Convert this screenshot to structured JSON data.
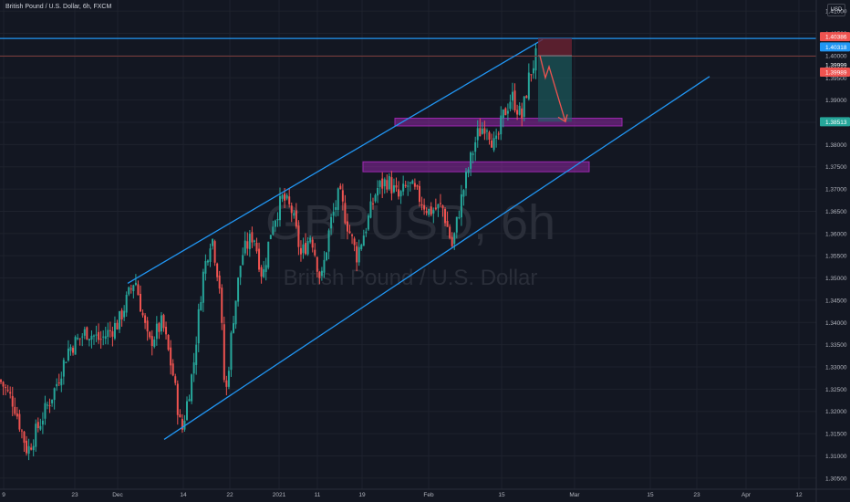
{
  "header": {
    "symbol_title": "British Pound / U.S. Dollar, 6h, FXCM"
  },
  "price_scale": {
    "currency": "USD"
  },
  "watermark": {
    "ticker": "GBPUSD, 6h",
    "name": "British Pound / U.S. Dollar"
  },
  "colors": {
    "background": "#131722",
    "grid": "#1e222d",
    "up_candle": "#26a69a",
    "down_candle": "#ef5350",
    "trend_line": "#2196f3",
    "zone": "#9c27b0",
    "target_zone": "#1e6b6b",
    "stop_zone": "#6b2232"
  },
  "badges": {
    "b1": "1.40386",
    "b2": "1.40318",
    "b3": "1.39999",
    "b4": "1.39989",
    "b5": "1.38513"
  },
  "chart_data": {
    "type": "candlestick",
    "symbol": "GBPUSD",
    "timeframe": "6h",
    "title": "British Pound / U.S. Dollar, 6h, FXCM",
    "x_tick_labels": [
      "9",
      "23",
      "Dec",
      "14",
      "22",
      "2021",
      "11",
      "19",
      "Feb",
      "15",
      "Mar",
      "15",
      "23",
      "Apr",
      "12"
    ],
    "y_ticks": [
      1.305,
      1.31,
      1.315,
      1.32,
      1.325,
      1.33,
      1.335,
      1.34,
      1.345,
      1.35,
      1.355,
      1.36,
      1.365,
      1.37,
      1.375,
      1.38,
      1.385,
      1.39,
      1.395,
      1.4,
      1.405,
      1.41
    ],
    "y_tick_labels": [
      "1.30500",
      "1.31000",
      "1.31500",
      "1.32000",
      "1.32500",
      "1.33000",
      "1.33500",
      "1.34000",
      "1.34500",
      "1.35000",
      "1.35500",
      "1.36000",
      "1.36500",
      "1.37000",
      "1.37500",
      "1.38000",
      "1.38500",
      "1.39000",
      "1.39500",
      "1.40000",
      "1.40500",
      "1.41000"
    ],
    "ylim": [
      1.3025,
      1.4125
    ],
    "price_path": [
      [
        0,
        1.327
      ],
      [
        15,
        1.322
      ],
      [
        30,
        1.311
      ],
      [
        45,
        1.318
      ],
      [
        60,
        1.325
      ],
      [
        75,
        1.334
      ],
      [
        95,
        1.338
      ],
      [
        110,
        1.336
      ],
      [
        130,
        1.34
      ],
      [
        148,
        1.35
      ],
      [
        163,
        1.335
      ],
      [
        178,
        1.34
      ],
      [
        190,
        1.328
      ],
      [
        199,
        1.315
      ],
      [
        212,
        1.33
      ],
      [
        222,
        1.35
      ],
      [
        232,
        1.36
      ],
      [
        241,
        1.348
      ],
      [
        247,
        1.322
      ],
      [
        255,
        1.34
      ],
      [
        265,
        1.355
      ],
      [
        278,
        1.36
      ],
      [
        288,
        1.35
      ],
      [
        298,
        1.362
      ],
      [
        310,
        1.368
      ],
      [
        320,
        1.365
      ],
      [
        330,
        1.355
      ],
      [
        341,
        1.36
      ],
      [
        352,
        1.349
      ],
      [
        362,
        1.362
      ],
      [
        372,
        1.369
      ],
      [
        381,
        1.362
      ],
      [
        391,
        1.355
      ],
      [
        402,
        1.362
      ],
      [
        413,
        1.37
      ],
      [
        425,
        1.372
      ],
      [
        437,
        1.368
      ],
      [
        448,
        1.371
      ],
      [
        460,
        1.368
      ],
      [
        470,
        1.365
      ],
      [
        485,
        1.366
      ],
      [
        496,
        1.357
      ],
      [
        505,
        1.367
      ],
      [
        514,
        1.375
      ],
      [
        523,
        1.382
      ],
      [
        533,
        1.385
      ],
      [
        543,
        1.379
      ],
      [
        551,
        1.386
      ],
      [
        561,
        1.391
      ],
      [
        572,
        1.386
      ],
      [
        580,
        1.395
      ],
      [
        588,
        1.4
      ]
    ],
    "channel": {
      "upper": [
        [
          140,
          1.3488
        ],
        [
          595,
          1.4036
        ]
      ],
      "lower": [
        [
          180,
          1.3137
        ],
        [
          778,
          1.3953
        ]
      ]
    },
    "horizontal_lines": [
      1.40386,
      1.39989
    ],
    "zones": [
      {
        "from": 1.3848,
        "to": 1.3853
      },
      {
        "from": 1.3745,
        "to": 1.3755
      }
    ],
    "position": {
      "entry": 1.39999,
      "stop": 1.40386,
      "target": 1.38513
    }
  }
}
